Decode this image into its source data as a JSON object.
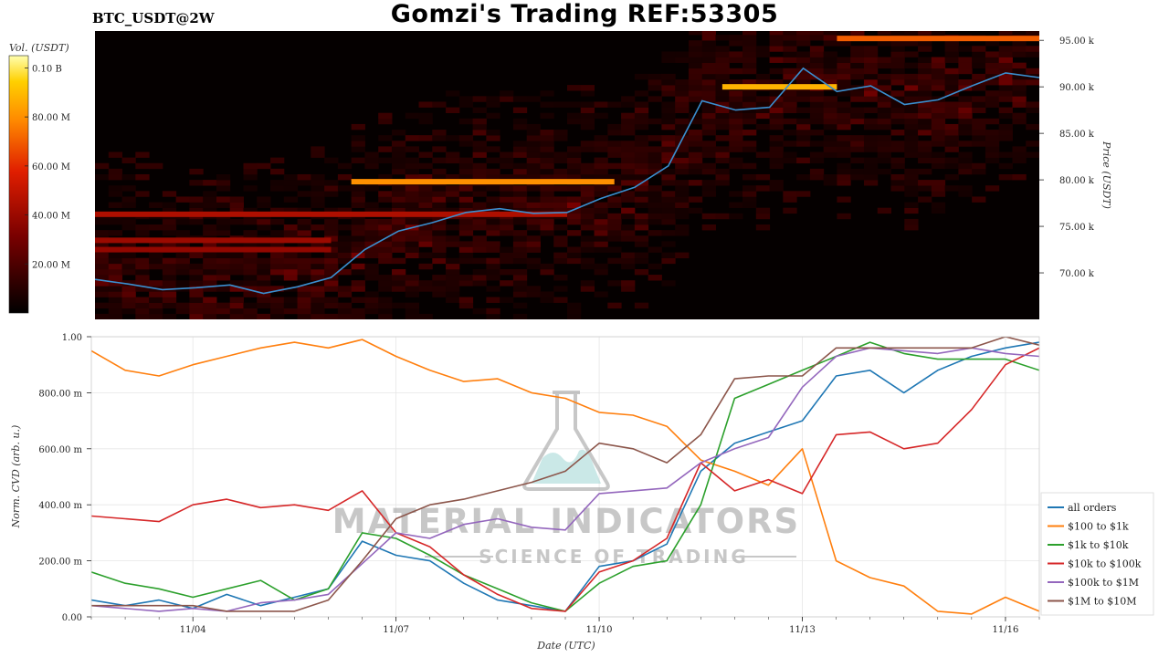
{
  "header": {
    "title": "Gomzi's Trading REF:53305",
    "pair": "BTC_USDT@2W"
  },
  "watermark": {
    "line1": "MATERIAL INDICATORS",
    "line2": "SCIENCE OF TRADING",
    "icon": "flask-icon"
  },
  "colors": {
    "all_orders": "#1f77b4",
    "r100_1k": "#ff7f0e",
    "r1k_10k": "#2ca02c",
    "r10k_100k": "#d62728",
    "r100k_1m": "#9467bd",
    "r1m_10m": "#8c564b"
  },
  "chart_data": [
    {
      "type": "heatmap",
      "colorbar": {
        "label": "Vol. (USDT)",
        "ticks": [
          "0.10 B",
          "80.00 M",
          "60.00 M",
          "40.00 M",
          "20.00 M"
        ],
        "tick_values": [
          100,
          80,
          60,
          40,
          20
        ],
        "range": [
          0,
          105
        ]
      },
      "ylabel": "Price (USDT)",
      "ylim": [
        65,
        96
      ],
      "yticks": [
        70,
        75,
        80,
        85,
        90,
        95
      ],
      "ytick_labels": [
        "70.00 k",
        "75.00 k",
        "80.00 k",
        "85.00 k",
        "90.00 k",
        "95.00 k"
      ],
      "xlim": [
        0,
        14
      ],
      "price_line": {
        "x": [
          0,
          0.5,
          1,
          1.5,
          2,
          2.5,
          3,
          3.5,
          4,
          4.5,
          5,
          5.5,
          6,
          6.5,
          7,
          7.5,
          8,
          8.5,
          9,
          9.5,
          10,
          10.5,
          11,
          11.5,
          12,
          12.5,
          13,
          13.5,
          14
        ],
        "y": [
          69.3,
          68.8,
          68.2,
          68.4,
          68.7,
          67.8,
          68.5,
          69.5,
          72.5,
          74.5,
          75.4,
          76.5,
          76.9,
          76.4,
          76.5,
          78,
          79.2,
          81.5,
          88.5,
          87.5,
          87.8,
          92,
          89.5,
          90.1,
          88.1,
          88.6,
          90.1,
          91.5,
          91
        ]
      },
      "bands": [
        {
          "price": 95.2,
          "start": 11,
          "end": 14,
          "intensity": 70
        },
        {
          "price": 90,
          "start": 9.3,
          "end": 11,
          "intensity": 88
        },
        {
          "price": 79.8,
          "start": 3.8,
          "end": 7.7,
          "intensity": 80
        },
        {
          "price": 76.3,
          "start": 0,
          "end": 7,
          "intensity": 45
        },
        {
          "price": 73.5,
          "start": 0,
          "end": 3.5,
          "intensity": 40
        },
        {
          "price": 72.5,
          "start": 0,
          "end": 3.5,
          "intensity": 38
        }
      ]
    },
    {
      "type": "line",
      "xlabel": "Date (UTC)",
      "ylabel": "Norm. CVD (arb. u.)",
      "xlim": [
        0,
        14
      ],
      "xticks": [
        1.5,
        4.5,
        7.5,
        10.5,
        13.5
      ],
      "xtick_labels": [
        "11/04",
        "11/07",
        "11/10",
        "11/13",
        "11/16"
      ],
      "ylim": [
        0,
        1
      ],
      "yticks": [
        0,
        0.2,
        0.4,
        0.6,
        0.8,
        1.0
      ],
      "ytick_labels": [
        "0.00",
        "200.00 m",
        "400.00 m",
        "600.00 m",
        "800.00 m",
        "1.00"
      ],
      "grid": true,
      "legend": "right",
      "x": [
        0,
        0.5,
        1,
        1.5,
        2,
        2.5,
        3,
        3.5,
        4,
        4.5,
        5,
        5.5,
        6,
        6.5,
        7,
        7.5,
        8,
        8.5,
        9,
        9.5,
        10,
        10.5,
        11,
        11.5,
        12,
        12.5,
        13,
        13.5,
        14
      ],
      "series": [
        {
          "name": "all orders",
          "key": "all_orders",
          "values": [
            0.06,
            0.04,
            0.06,
            0.03,
            0.08,
            0.04,
            0.07,
            0.1,
            0.27,
            0.22,
            0.2,
            0.12,
            0.06,
            0.04,
            0.02,
            0.18,
            0.2,
            0.26,
            0.52,
            0.62,
            0.66,
            0.7,
            0.86,
            0.88,
            0.8,
            0.88,
            0.93,
            0.96,
            0.98
          ]
        },
        {
          "name": "$100 to $1k",
          "key": "r100_1k",
          "values": [
            0.95,
            0.88,
            0.86,
            0.9,
            0.93,
            0.96,
            0.98,
            0.96,
            0.99,
            0.93,
            0.88,
            0.84,
            0.85,
            0.8,
            0.78,
            0.73,
            0.72,
            0.68,
            0.56,
            0.52,
            0.47,
            0.6,
            0.2,
            0.14,
            0.11,
            0.02,
            0.01,
            0.07,
            0.02
          ]
        },
        {
          "name": "$1k to $10k",
          "key": "r1k_10k",
          "values": [
            0.16,
            0.12,
            0.1,
            0.07,
            0.1,
            0.13,
            0.06,
            0.1,
            0.3,
            0.28,
            0.22,
            0.15,
            0.1,
            0.05,
            0.02,
            0.12,
            0.18,
            0.2,
            0.4,
            0.78,
            0.83,
            0.88,
            0.93,
            0.98,
            0.94,
            0.92,
            0.92,
            0.92,
            0.88
          ]
        },
        {
          "name": "$10k to $100k",
          "key": "r10k_100k",
          "values": [
            0.36,
            0.35,
            0.34,
            0.4,
            0.42,
            0.39,
            0.4,
            0.38,
            0.45,
            0.3,
            0.25,
            0.15,
            0.08,
            0.03,
            0.02,
            0.16,
            0.2,
            0.28,
            0.55,
            0.45,
            0.49,
            0.44,
            0.65,
            0.66,
            0.6,
            0.62,
            0.74,
            0.9,
            0.96
          ]
        },
        {
          "name": "$100k to $1M",
          "key": "r100k_1m",
          "values": [
            0.04,
            0.03,
            0.02,
            0.03,
            0.02,
            0.05,
            0.06,
            0.08,
            0.19,
            0.3,
            0.28,
            0.33,
            0.35,
            0.32,
            0.31,
            0.44,
            0.45,
            0.46,
            0.55,
            0.6,
            0.64,
            0.82,
            0.93,
            0.96,
            0.95,
            0.94,
            0.96,
            0.94,
            0.93
          ]
        },
        {
          "name": "$1M to $10M",
          "key": "r1m_10m",
          "values": [
            0.04,
            0.04,
            0.04,
            0.04,
            0.02,
            0.02,
            0.02,
            0.06,
            0.2,
            0.35,
            0.4,
            0.42,
            0.45,
            0.48,
            0.52,
            0.62,
            0.6,
            0.55,
            0.65,
            0.85,
            0.86,
            0.86,
            0.96,
            0.96,
            0.96,
            0.96,
            0.96,
            1.0,
            0.97
          ]
        }
      ]
    }
  ]
}
